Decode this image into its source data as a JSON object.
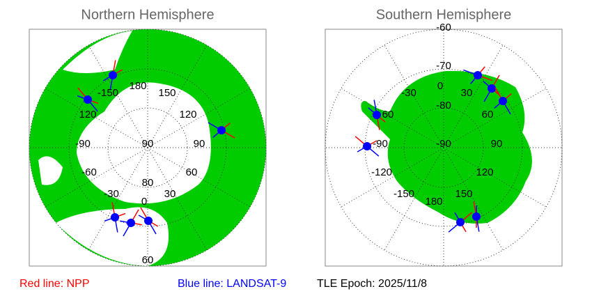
{
  "panels": [
    {
      "title": "Northern Hemisphere",
      "labels": [
        "180",
        "150",
        "-150",
        "120",
        "120",
        "90",
        "-90",
        "90",
        "60",
        "-60",
        "80",
        "30",
        "-30",
        "0",
        "60"
      ]
    },
    {
      "title": "Southern Hemisphere",
      "labels": [
        "-60",
        "-70",
        "0",
        "-30",
        "30",
        "-80",
        "60",
        "60",
        "-90",
        "-90",
        "90",
        "-120",
        "120",
        "-150",
        "150",
        "180"
      ]
    }
  ],
  "legend": {
    "npp": "Red line: NPP",
    "landsat": "Blue line: LANDSAT-9",
    "epoch": "TLE Epoch: 2025/11/8"
  }
}
